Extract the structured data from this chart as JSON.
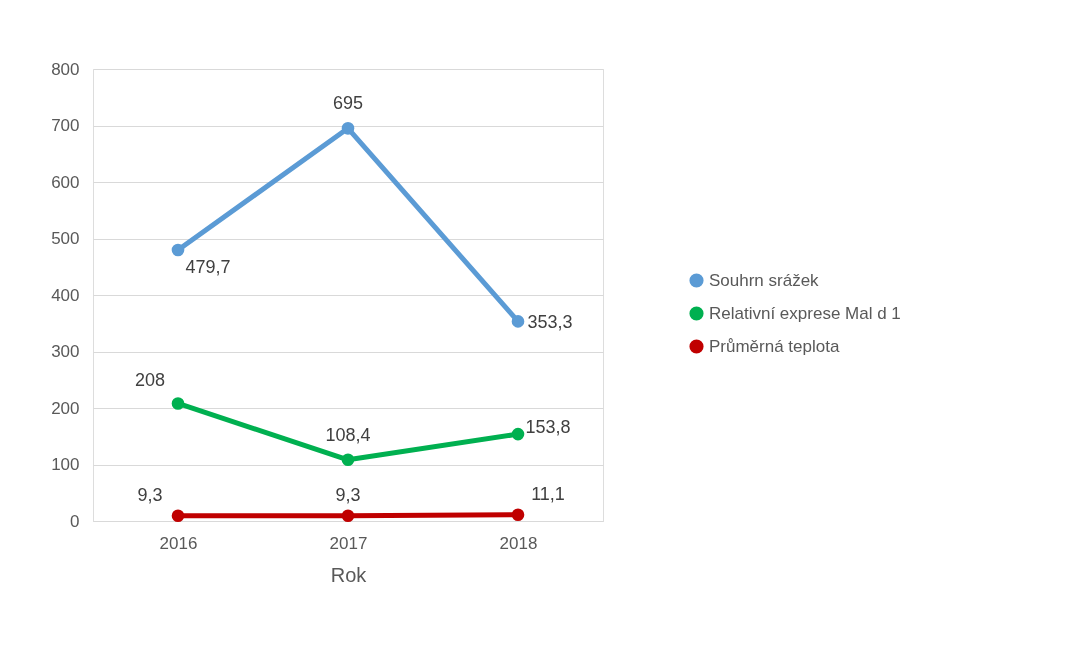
{
  "chart_data": {
    "type": "line",
    "xlabel": "Rok",
    "categories": [
      "2016",
      "2017",
      "2018"
    ],
    "series": [
      {
        "name": "Souhrn srážek",
        "color": "#5b9bd5",
        "values": [
          479.7,
          695,
          353.3
        ],
        "value_labels": [
          "479,7",
          "695",
          "353,3"
        ]
      },
      {
        "name": "Relativní exprese Mal d 1",
        "color": "#00b050",
        "values": [
          208,
          108.4,
          153.8
        ],
        "value_labels": [
          "208",
          "108,4",
          "153,8"
        ]
      },
      {
        "name": "Průměrná teplota",
        "color": "#c00000",
        "values": [
          9.3,
          9.3,
          11.1
        ],
        "value_labels": [
          "9,3",
          "9,3",
          "11,1"
        ]
      }
    ],
    "ylim": [
      0,
      800
    ],
    "yticks": [
      0,
      100,
      200,
      300,
      400,
      500,
      600,
      700,
      800
    ],
    "grid": "y",
    "legend": "right",
    "marker": "circle",
    "line_style": "solid"
  }
}
